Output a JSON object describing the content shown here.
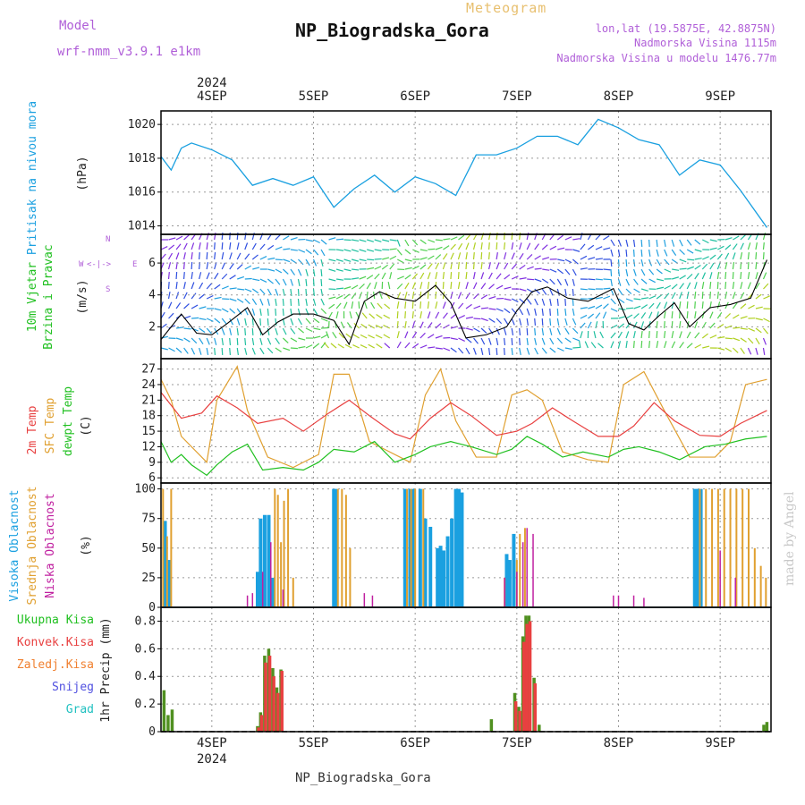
{
  "header": {
    "title": "NP_Biogradska_Gora",
    "meteogram_label": "Meteogram",
    "model_label": "Model",
    "model_name": "wrf-nmm_v3.9.1 e1km",
    "lonlat": "lon,lat (19.5875E, 42.8875N)",
    "altitude": "Nadmorska Visina 1115m",
    "model_altitude": "Nadmorska Visina u modelu 1476.77m"
  },
  "footer": {
    "location": "NP_Biogradska_Gora",
    "made_by": "made by Angel"
  },
  "colors": {
    "pressure": "#1aa0e0",
    "temp2m": "#e84040",
    "sfc_temp": "#e0a030",
    "dewpoint": "#20c020",
    "high_cloud": "#1aa0e0",
    "mid_cloud": "#e0a030",
    "low_cloud": "#c020a0",
    "total_precip": "#509020",
    "convective": "#e84040",
    "freezing": "#f08030",
    "snow": "#5050e0",
    "hail": "#20c0c0",
    "legend_purple": "#b05fd8"
  },
  "chart_data": [
    {
      "type": "line",
      "panel": "pressure",
      "ylabel": "Pritisak na nivou mora",
      "unit": "(hPa)",
      "x_labels_top": [
        "4SEP",
        "5SEP",
        "6SEP",
        "7SEP",
        "8SEP",
        "9SEP"
      ],
      "year_top": "2024",
      "yticks": [
        "1014",
        "1016",
        "1018",
        "1020"
      ],
      "ylim": [
        1013.5,
        1020.8
      ],
      "series": [
        {
          "x": [
            0,
            0.1,
            0.2,
            0.3,
            0.5,
            0.7,
            0.9,
            1.1,
            1.3,
            1.5,
            1.7,
            1.9,
            2.1,
            2.3,
            2.5,
            2.7,
            2.9,
            3.1,
            3.3,
            3.5,
            3.7,
            3.9,
            4.1,
            4.3,
            4.5,
            4.7,
            4.9,
            5.1,
            5.3,
            5.5,
            5.7,
            5.96
          ],
          "y": [
            1018.1,
            1017.3,
            1018.6,
            1018.9,
            1018.5,
            1017.9,
            1016.4,
            1016.8,
            1016.4,
            1016.9,
            1015.1,
            1016.2,
            1017.0,
            1016.0,
            1016.9,
            1016.5,
            1015.8,
            1018.2,
            1018.2,
            1018.6,
            1019.3,
            1019.3,
            1018.8,
            1020.3,
            1019.8,
            1019.1,
            1018.8,
            1017.0,
            1017.9,
            1017.6,
            1016.1,
            1013.9
          ]
        }
      ]
    },
    {
      "type": "line",
      "panel": "wind",
      "ylabel_line1": "10m Vjetar",
      "ylabel_line2": "Brzina i Pravac",
      "unit": "(m/s)",
      "compass": {
        "w": "W",
        "arrow": "<-|->",
        "e": "E",
        "n": "N",
        "s": "S"
      },
      "yticks": [
        "2",
        "4",
        "6"
      ],
      "ylim": [
        0,
        7.8
      ],
      "series": [
        {
          "name": "wind speed",
          "x": [
            0,
            0.1,
            0.2,
            0.35,
            0.5,
            0.65,
            0.85,
            1.0,
            1.15,
            1.3,
            1.5,
            1.7,
            1.85,
            2.0,
            2.15,
            2.3,
            2.5,
            2.7,
            2.85,
            3.0,
            3.2,
            3.4,
            3.5,
            3.65,
            3.8,
            4.0,
            4.2,
            4.45,
            4.6,
            4.75,
            4.9,
            5.05,
            5.2,
            5.4,
            5.6,
            5.8,
            5.96
          ],
          "y": [
            1.2,
            2.0,
            2.8,
            1.6,
            1.5,
            2.2,
            3.2,
            1.5,
            2.3,
            2.8,
            2.8,
            2.4,
            0.9,
            3.6,
            4.2,
            3.8,
            3.6,
            4.6,
            3.5,
            1.3,
            1.5,
            2.0,
            3.0,
            4.2,
            4.5,
            3.8,
            3.6,
            4.4,
            2.2,
            1.8,
            2.7,
            3.5,
            2.0,
            3.2,
            3.4,
            3.8,
            6.2
          ]
        }
      ]
    },
    {
      "type": "line",
      "panel": "temperature",
      "ylabel_2m": "2m Temp",
      "ylabel_sfc": "SFC Temp",
      "ylabel_dewpt": "dewpt Temp",
      "unit": "(C)",
      "yticks": [
        "6",
        "9",
        "12",
        "15",
        "18",
        "21",
        "24",
        "27"
      ],
      "ylim": [
        5,
        29
      ],
      "series": [
        {
          "name": "2m Temp",
          "x": [
            0,
            0.2,
            0.4,
            0.55,
            0.75,
            0.95,
            1.2,
            1.4,
            1.65,
            1.85,
            2.05,
            2.3,
            2.45,
            2.65,
            2.85,
            3.05,
            3.3,
            3.5,
            3.65,
            3.85,
            4.05,
            4.3,
            4.5,
            4.65,
            4.85,
            5.05,
            5.3,
            5.5,
            5.7,
            5.96
          ],
          "y": [
            22.5,
            17.5,
            18.5,
            21.8,
            19.5,
            16.5,
            17.5,
            15.0,
            18.5,
            21.0,
            18.0,
            14.5,
            13.5,
            17.5,
            20.5,
            18.0,
            14.2,
            15.0,
            16.5,
            19.5,
            17.0,
            14.0,
            14.0,
            16.0,
            20.5,
            17.0,
            14.2,
            14.0,
            16.5,
            19.0
          ]
        },
        {
          "name": "SFC Temp",
          "x": [
            0,
            0.1,
            0.2,
            0.45,
            0.55,
            0.75,
            0.85,
            1.05,
            1.3,
            1.55,
            1.7,
            1.85,
            2.05,
            2.2,
            2.45,
            2.6,
            2.75,
            2.9,
            3.1,
            3.3,
            3.45,
            3.6,
            3.75,
            3.95,
            4.2,
            4.4,
            4.55,
            4.75,
            4.95,
            5.2,
            5.45,
            5.6,
            5.75,
            5.96
          ],
          "y": [
            25.0,
            21.0,
            14.0,
            9.0,
            21.0,
            27.5,
            19.0,
            10.0,
            8.0,
            10.5,
            26.0,
            26.0,
            13.0,
            11.5,
            9.0,
            22.0,
            27.0,
            17.0,
            10.0,
            10.0,
            22.0,
            23.0,
            21.0,
            11.0,
            9.5,
            9.0,
            24.0,
            26.5,
            19.0,
            10.0,
            10.0,
            13.0,
            24.0,
            25.0
          ]
        },
        {
          "name": "dewpt Temp",
          "x": [
            0,
            0.1,
            0.2,
            0.3,
            0.45,
            0.55,
            0.7,
            0.85,
            1.0,
            1.2,
            1.4,
            1.55,
            1.7,
            1.9,
            2.1,
            2.3,
            2.5,
            2.65,
            2.85,
            3.05,
            3.3,
            3.45,
            3.6,
            3.75,
            3.95,
            4.15,
            4.4,
            4.55,
            4.7,
            4.9,
            5.1,
            5.35,
            5.55,
            5.75,
            5.96
          ],
          "y": [
            13.0,
            9.0,
            10.5,
            8.5,
            6.5,
            8.5,
            11.0,
            12.5,
            7.5,
            8.0,
            7.5,
            9.0,
            11.5,
            11.0,
            13.0,
            9.0,
            10.5,
            12.0,
            13.0,
            12.0,
            10.5,
            11.5,
            14.0,
            12.5,
            10.0,
            11.0,
            10.0,
            11.5,
            12.0,
            11.0,
            9.5,
            12.0,
            12.5,
            13.5,
            14.0
          ]
        }
      ]
    },
    {
      "type": "bar",
      "panel": "cloud",
      "ylabel_high": "Visoka Oblacnost",
      "ylabel_mid": "Srednja Oblacnost",
      "ylabel_low": "Niska Oblacnost",
      "unit": "(%)",
      "yticks": [
        "0",
        "25",
        "50",
        "75",
        "100"
      ],
      "ylim": [
        0,
        105
      ],
      "series": [
        {
          "name": "Visoka Oblacnost",
          "x": [
            0.04,
            0.08,
            0.95,
            0.98,
            1.02,
            1.06,
            1.1,
            1.7,
            1.72,
            2.4,
            2.45,
            2.48,
            2.55,
            2.6,
            2.65,
            2.72,
            2.75,
            2.78,
            2.82,
            2.86,
            2.9,
            2.93,
            2.96,
            3.4,
            3.43,
            3.47,
            5.25,
            5.28,
            5.31
          ],
          "y": [
            73,
            40,
            30,
            75,
            78,
            78,
            25,
            100,
            100,
            100,
            100,
            100,
            100,
            75,
            68,
            50,
            52,
            48,
            60,
            75,
            100,
            100,
            97,
            45,
            40,
            62,
            100,
            100,
            100
          ]
        },
        {
          "name": "Srednja Oblacnost",
          "x": [
            0.02,
            0.06,
            0.1,
            1.12,
            1.15,
            1.18,
            1.21,
            1.25,
            1.3,
            1.74,
            1.78,
            1.82,
            1.86,
            2.42,
            2.46,
            2.5,
            2.58,
            3.38,
            3.5,
            3.53,
            3.58,
            5.3,
            5.36,
            5.42,
            5.48,
            5.54,
            5.6,
            5.66,
            5.72,
            5.78,
            5.84,
            5.9,
            5.95
          ],
          "y": [
            100,
            60,
            100,
            100,
            95,
            55,
            90,
            100,
            25,
            100,
            100,
            95,
            50,
            100,
            100,
            100,
            100,
            25,
            40,
            62,
            67,
            100,
            100,
            100,
            100,
            100,
            100,
            100,
            100,
            100,
            50,
            35,
            25
          ]
        },
        {
          "name": "Niska Oblacnost",
          "x": [
            0.85,
            0.9,
            1.0,
            1.08,
            1.2,
            2.0,
            2.08,
            3.38,
            3.5,
            3.56,
            3.6,
            3.66,
            4.45,
            4.5,
            4.65,
            4.75,
            5.5,
            5.65
          ],
          "y": [
            10,
            12,
            30,
            55,
            15,
            12,
            10,
            25,
            30,
            55,
            67,
            62,
            10,
            10,
            10,
            8,
            48,
            25
          ]
        }
      ]
    },
    {
      "type": "bar",
      "panel": "precip",
      "legend": [
        "Ukupna Kisa",
        "Konvek.Kisa",
        "Zaledj.Kisa",
        "Snijeg",
        "Grad"
      ],
      "unit": "1hr Precip (mm)",
      "x_labels_bottom": [
        "4SEP",
        "5SEP",
        "6SEP",
        "7SEP",
        "8SEP",
        "9SEP"
      ],
      "year_bottom": "2024",
      "yticks": [
        "0",
        "0.2",
        "0.4",
        "0.6",
        "0.8"
      ],
      "ylim": [
        0,
        0.9
      ],
      "series": [
        {
          "name": "Ukupna Kisa",
          "x": [
            0.03,
            0.07,
            0.11,
            0.95,
            0.98,
            1.02,
            1.06,
            1.1,
            1.14,
            1.18,
            3.25,
            3.48,
            3.52,
            3.56,
            3.59,
            3.62,
            3.67,
            3.72,
            5.93,
            5.96
          ],
          "y": [
            0.3,
            0.12,
            0.16,
            0.04,
            0.14,
            0.55,
            0.6,
            0.46,
            0.32,
            0.45,
            0.09,
            0.28,
            0.18,
            0.69,
            0.84,
            0.84,
            0.39,
            0.05,
            0.05,
            0.07
          ]
        },
        {
          "name": "Konvek.Kisa",
          "x": [
            0.96,
            0.99,
            1.03,
            1.07,
            1.11,
            1.15,
            1.19,
            3.49,
            3.53,
            3.57,
            3.6,
            3.63,
            3.68
          ],
          "y": [
            0.03,
            0.12,
            0.5,
            0.55,
            0.4,
            0.28,
            0.44,
            0.22,
            0.15,
            0.65,
            0.78,
            0.8,
            0.35
          ]
        }
      ]
    }
  ]
}
